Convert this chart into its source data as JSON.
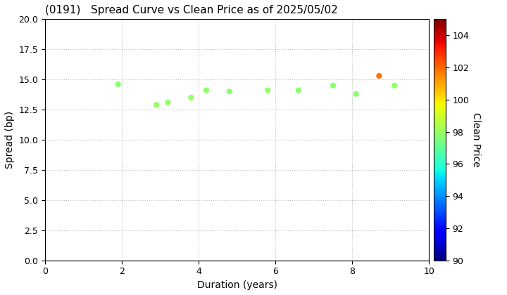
{
  "title": "(0191)   Spread Curve vs Clean Price as of 2025/05/02",
  "xlabel": "Duration (years)",
  "ylabel": "Spread (bp)",
  "colorbar_label": "Clean Price",
  "xlim": [
    0,
    10
  ],
  "ylim": [
    0.0,
    20.0
  ],
  "yticks": [
    0.0,
    2.5,
    5.0,
    7.5,
    10.0,
    12.5,
    15.0,
    17.5,
    20.0
  ],
  "xticks": [
    0,
    2,
    4,
    6,
    8,
    10
  ],
  "colorbar_min": 90,
  "colorbar_max": 105,
  "colorbar_ticks": [
    90,
    92,
    94,
    96,
    98,
    100,
    102,
    104
  ],
  "points": [
    {
      "duration": 1.9,
      "spread": 14.6,
      "price": 97.8
    },
    {
      "duration": 2.9,
      "spread": 12.9,
      "price": 97.9
    },
    {
      "duration": 3.2,
      "spread": 13.1,
      "price": 97.9
    },
    {
      "duration": 3.8,
      "spread": 13.5,
      "price": 98.0
    },
    {
      "duration": 4.2,
      "spread": 14.1,
      "price": 97.8
    },
    {
      "duration": 4.8,
      "spread": 14.0,
      "price": 97.8
    },
    {
      "duration": 5.8,
      "spread": 14.1,
      "price": 97.8
    },
    {
      "duration": 6.6,
      "spread": 14.1,
      "price": 97.7
    },
    {
      "duration": 7.5,
      "spread": 14.5,
      "price": 97.8
    },
    {
      "duration": 8.1,
      "spread": 13.8,
      "price": 97.7
    },
    {
      "duration": 8.7,
      "spread": 15.3,
      "price": 101.8
    },
    {
      "duration": 9.1,
      "spread": 14.5,
      "price": 97.9
    }
  ],
  "background_color": "#ffffff",
  "marker_size": 35,
  "colormap": "jet",
  "figsize": [
    7.2,
    4.2
  ],
  "dpi": 100,
  "title_fontsize": 11,
  "axis_fontsize": 10,
  "tick_fontsize": 9,
  "grid_color": "gray",
  "grid_alpha": 0.5,
  "grid_linestyle": ":",
  "grid_linewidth": 0.8
}
